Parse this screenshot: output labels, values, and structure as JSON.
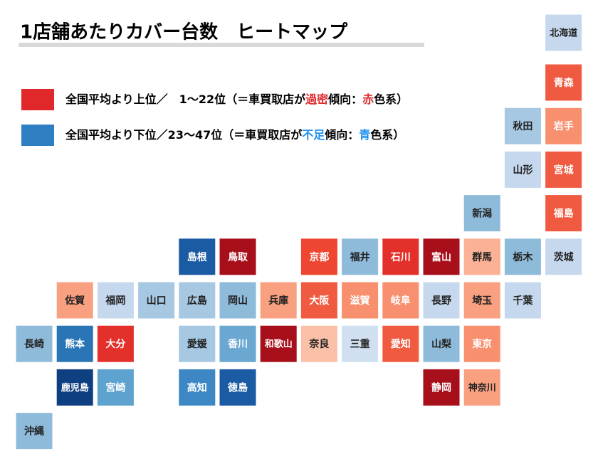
{
  "title": "1店舗あたりカバー台数　ヒートマップ",
  "legend": [
    {
      "color": "#e0282b",
      "parts": [
        {
          "text": "全国平均より上位／　1～22位（＝車買取店が"
        },
        {
          "text": "過密",
          "color": "#e0282b"
        },
        {
          "text": "傾向："
        },
        {
          "text": "赤",
          "color": "#e0282b"
        },
        {
          "text": "色系）"
        }
      ]
    },
    {
      "color": "#2e7fc1",
      "parts": [
        {
          "text": "全国平均より下位／23～47位（＝車買取店が"
        },
        {
          "text": "不足",
          "color": "#1e8ff0"
        },
        {
          "text": "傾向："
        },
        {
          "text": "青",
          "color": "#1e8ff0"
        },
        {
          "text": "色系）"
        }
      ]
    }
  ],
  "tiles": [
    {
      "name": "北海道",
      "color": "#c6d8ee"
    },
    {
      "name": "青森",
      "color": "#ef5a40"
    },
    {
      "name": "秋田",
      "color": "#a6c8e2"
    },
    {
      "name": "岩手",
      "color": "#f88f6e"
    },
    {
      "name": "山形",
      "color": "#c6d8ee"
    },
    {
      "name": "宮城",
      "color": "#ef5a40"
    },
    {
      "name": "新潟",
      "color": "#8fbbdb"
    },
    {
      "name": "福島",
      "color": "#ef5a40"
    },
    {
      "name": "島根",
      "color": "#1b5ba3"
    },
    {
      "name": "鳥取",
      "color": "#a70f1a"
    },
    {
      "name": "京都",
      "color": "#ee4630"
    },
    {
      "name": "福井",
      "color": "#8fbbdb"
    },
    {
      "name": "石川",
      "color": "#e4302a"
    },
    {
      "name": "富山",
      "color": "#a70f1a"
    },
    {
      "name": "群馬",
      "color": "#fbb195"
    },
    {
      "name": "栃木",
      "color": "#8fbbdb"
    },
    {
      "name": "茨城",
      "color": "#c6d8ee"
    },
    {
      "name": "佐賀",
      "color": "#f9a080"
    },
    {
      "name": "福岡",
      "color": "#c6d8ee"
    },
    {
      "name": "山口",
      "color": "#a6c8e2"
    },
    {
      "name": "広島",
      "color": "#a6c8e2"
    },
    {
      "name": "岡山",
      "color": "#8fbbdb"
    },
    {
      "name": "兵庫",
      "color": "#f9a080"
    },
    {
      "name": "大阪",
      "color": "#ef5a40"
    },
    {
      "name": "滋賀",
      "color": "#f88f6e"
    },
    {
      "name": "岐阜",
      "color": "#f88f6e"
    },
    {
      "name": "長野",
      "color": "#c6d8ee"
    },
    {
      "name": "埼玉",
      "color": "#f9a080"
    },
    {
      "name": "千葉",
      "color": "#c6d8ee"
    },
    {
      "name": "長崎",
      "color": "#8fbbdb"
    },
    {
      "name": "熊本",
      "color": "#2a75b5"
    },
    {
      "name": "大分",
      "color": "#e4302a"
    },
    {
      "name": "愛媛",
      "color": "#a6c8e2"
    },
    {
      "name": "香川",
      "color": "#6aa8d2"
    },
    {
      "name": "和歌山",
      "color": "#a70f1a"
    },
    {
      "name": "奈良",
      "color": "#fbc0a8"
    },
    {
      "name": "三重",
      "color": "#d0e0f0"
    },
    {
      "name": "愛知",
      "color": "#ef5a40"
    },
    {
      "name": "山梨",
      "color": "#8fbbdb"
    },
    {
      "name": "東京",
      "color": "#f88f6e"
    },
    {
      "name": "鹿児島",
      "color": "#0e3f80"
    },
    {
      "name": "宮崎",
      "color": "#5ea2cf"
    },
    {
      "name": "高知",
      "color": "#3d88c4"
    },
    {
      "name": "徳島",
      "color": "#1b5ba3"
    },
    {
      "name": "静岡",
      "color": "#a70f1a"
    },
    {
      "name": "神奈川",
      "color": "#f9a080"
    },
    {
      "name": "沖縄",
      "color": "#8fbbdb"
    }
  ]
}
